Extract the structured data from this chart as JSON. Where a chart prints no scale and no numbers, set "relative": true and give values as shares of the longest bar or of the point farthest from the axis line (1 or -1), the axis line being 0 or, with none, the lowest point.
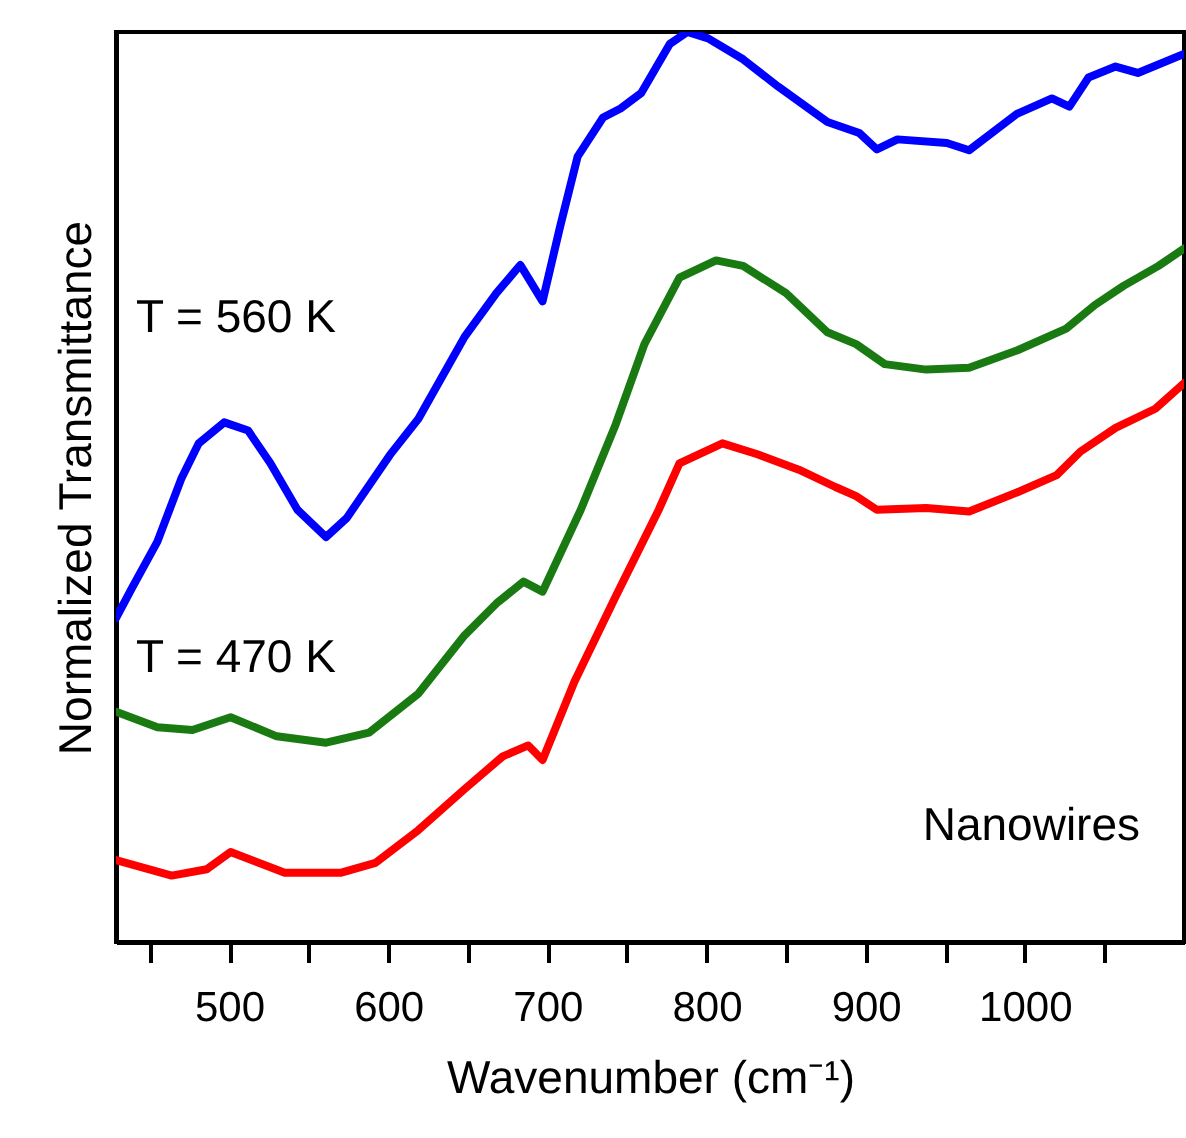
{
  "chart_data": {
    "type": "line",
    "relative": true,
    "xlabel": "Wavenumber (cm⁻¹)",
    "ylabel": "Normalized Transmittance",
    "annotations": [
      "Nanowires"
    ],
    "xlim": [
      429,
      1100
    ],
    "xticks": [
      {
        "value": 450,
        "label": null
      },
      500,
      {
        "value": 550,
        "label": null
      },
      600,
      {
        "value": 650,
        "label": null
      },
      700,
      {
        "value": 750,
        "label": null
      },
      800,
      {
        "value": 850,
        "label": null
      },
      900,
      {
        "value": 950,
        "label": null
      },
      1000,
      {
        "value": 1050,
        "label": null
      }
    ],
    "series": [
      {
        "name": "T = 560 K",
        "color": "#0000ff",
        "x": [
          429,
          439,
          455,
          470,
          481,
          497,
          512,
          526,
          543,
          561,
          574,
          601,
          619,
          648,
          668,
          683,
          697,
          708,
          719,
          735,
          746,
          759,
          777,
          788,
          801,
          823,
          845,
          876,
          896,
          907,
          920,
          951,
          965,
          995,
          1017,
          1028,
          1040,
          1057,
          1071,
          1100
        ],
        "values": [
          0.356,
          0.389,
          0.44,
          0.509,
          0.548,
          0.571,
          0.562,
          0.526,
          0.475,
          0.445,
          0.466,
          0.535,
          0.575,
          0.665,
          0.713,
          0.744,
          0.704,
          0.786,
          0.863,
          0.906,
          0.916,
          0.933,
          0.987,
          1.0,
          0.993,
          0.97,
          0.94,
          0.901,
          0.889,
          0.871,
          0.882,
          0.878,
          0.87,
          0.91,
          0.927,
          0.918,
          0.95,
          0.962,
          0.955,
          0.976
        ]
      },
      {
        "name": "T = 470 K",
        "color": "#1a7a12",
        "x": [
          429,
          455,
          477,
          501,
          530,
          561,
          588,
          619,
          648,
          668,
          685,
          697,
          721,
          743,
          761,
          783,
          806,
          823,
          850,
          876,
          894,
          912,
          938,
          965,
          995,
          1026,
          1044,
          1062,
          1084,
          1100
        ],
        "values": [
          0.253,
          0.236,
          0.233,
          0.247,
          0.226,
          0.219,
          0.23,
          0.273,
          0.337,
          0.372,
          0.396,
          0.385,
          0.475,
          0.569,
          0.657,
          0.73,
          0.749,
          0.743,
          0.713,
          0.67,
          0.657,
          0.635,
          0.629,
          0.631,
          0.65,
          0.674,
          0.7,
          0.721,
          0.743,
          0.762
        ]
      },
      {
        "color": "#ff0000",
        "x": [
          429,
          464,
          486,
          501,
          535,
          570,
          592,
          619,
          648,
          672,
          688,
          697,
          717,
          743,
          770,
          783,
          810,
          832,
          858,
          881,
          894,
          907,
          938,
          965,
          995,
          1020,
          1035,
          1057,
          1082,
          1100
        ],
        "values": [
          0.09,
          0.073,
          0.08,
          0.099,
          0.076,
          0.076,
          0.087,
          0.123,
          0.168,
          0.204,
          0.216,
          0.2,
          0.286,
          0.38,
          0.475,
          0.526,
          0.548,
          0.536,
          0.519,
          0.5,
          0.49,
          0.475,
          0.477,
          0.473,
          0.494,
          0.513,
          0.539,
          0.565,
          0.586,
          0.614
        ]
      }
    ]
  }
}
